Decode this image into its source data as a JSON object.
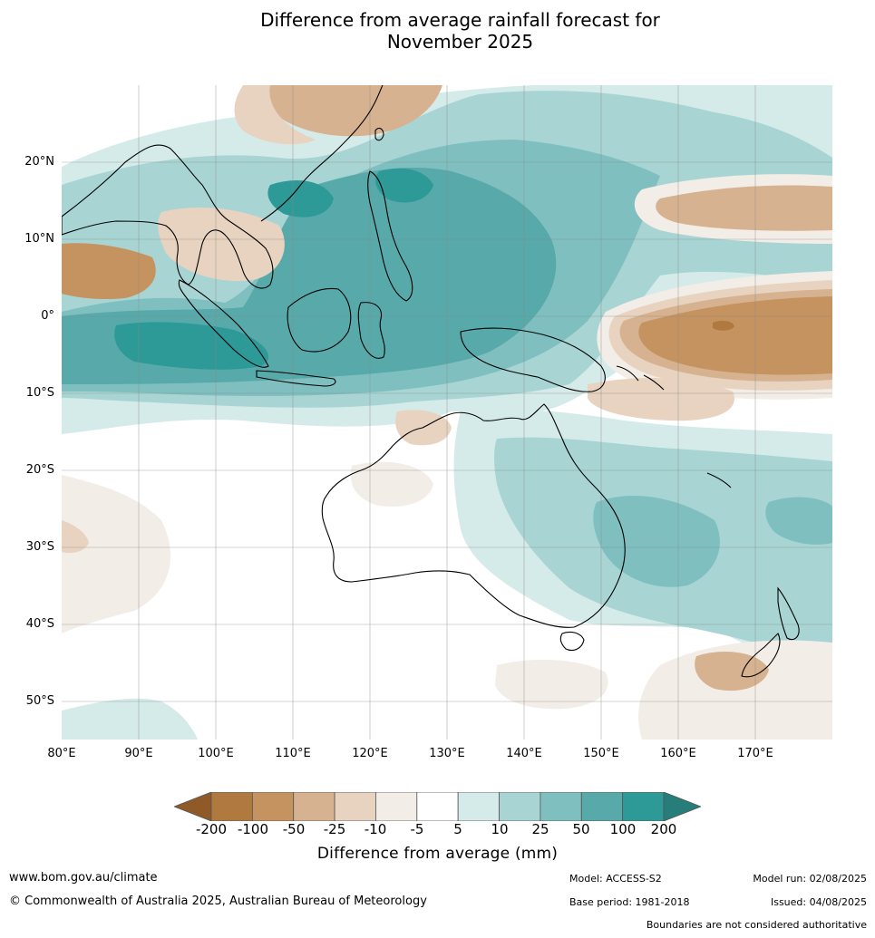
{
  "title_line1": "Difference from average rainfall forecast for",
  "title_line2": "November 2025",
  "map": {
    "lat_labels": [
      "20°N",
      "10°N",
      "0°",
      "10°S",
      "20°S",
      "30°S",
      "40°S",
      "50°S"
    ],
    "lon_labels": [
      "80°E",
      "90°E",
      "100°E",
      "110°E",
      "120°E",
      "130°E",
      "140°E",
      "150°E",
      "160°E",
      "170°E"
    ]
  },
  "legend": {
    "title": "Difference from average (mm)",
    "ticks": [
      "-200",
      "-100",
      "-50",
      "-25",
      "-10",
      "-5",
      "5",
      "10",
      "25",
      "50",
      "100",
      "200"
    ],
    "colors": [
      "#8f5a27",
      "#b07940",
      "#c4935f",
      "#d6b290",
      "#e8d3c0",
      "#f3ede7",
      "#ffffff",
      "#d5ebe9",
      "#a8d5d4",
      "#7fbfbf",
      "#58a9aa",
      "#2e9a98",
      "#267d7a"
    ]
  },
  "footer": {
    "url": "www.bom.gov.au/climate",
    "copyright": "© Commonwealth of Australia 2025, Australian Bureau of Meteorology",
    "model": "Model: ACCESS-S2",
    "base_period": "Base period: 1981-2018",
    "model_run": "Model run: 02/08/2025",
    "issued": "Issued: 04/08/2025",
    "disclaimer": "Boundaries are not considered authoritative"
  }
}
